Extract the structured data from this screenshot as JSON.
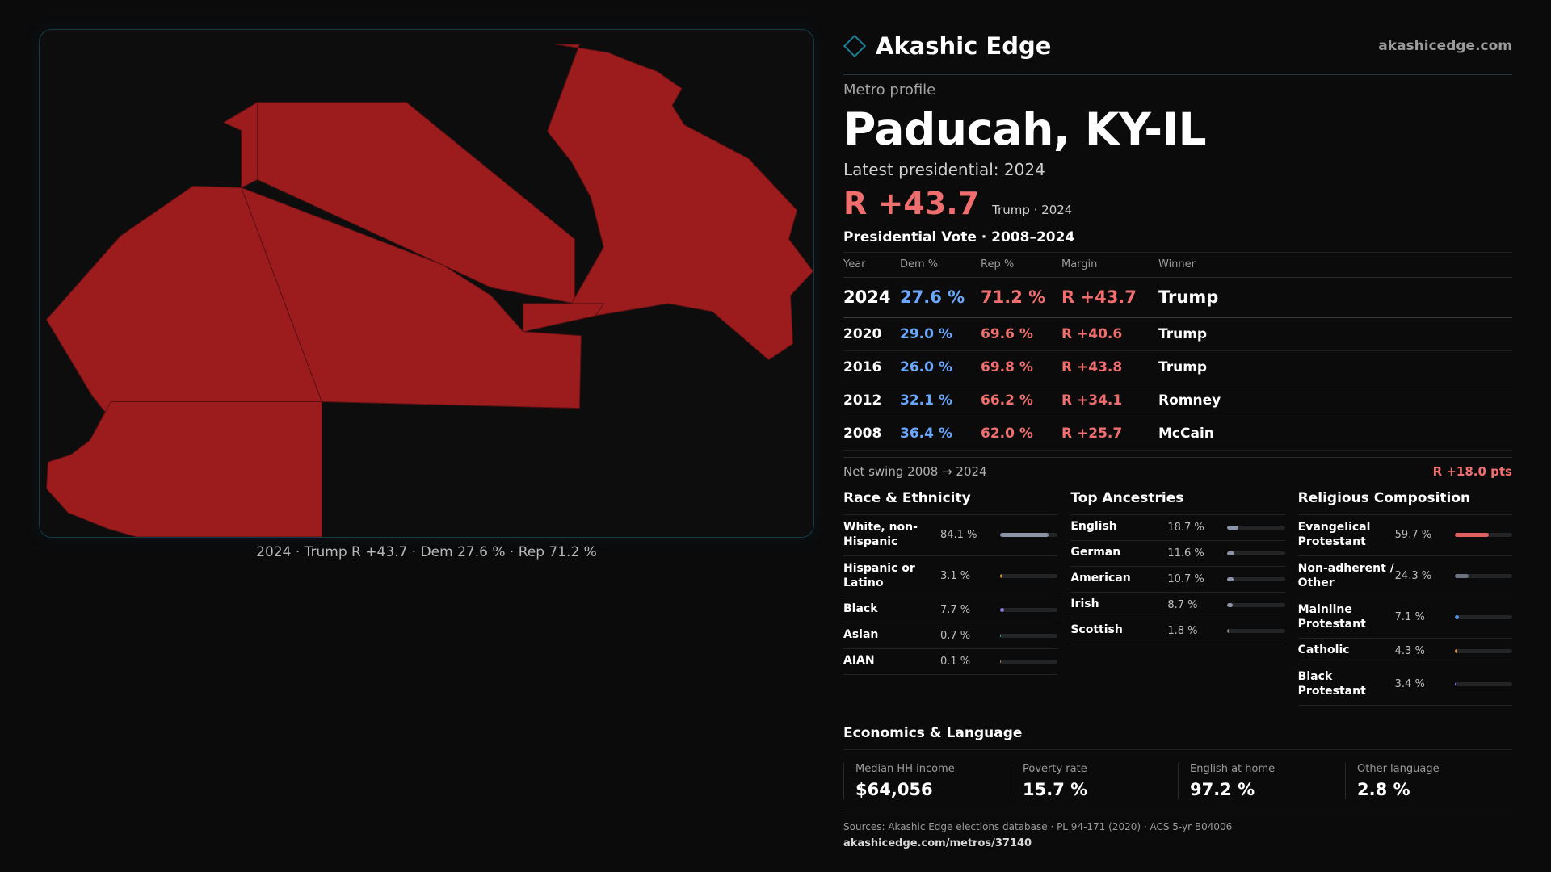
{
  "brand": {
    "name": "Akashic Edge",
    "url": "akashicedge.com",
    "icon": "diamond-logo-icon",
    "accent": "#1b7f95"
  },
  "map": {
    "caption": "2024 · Trump R +43.7 · Dem 27.6 % · Rep 71.2 %",
    "fill_color": "#9c1c1e",
    "stroke_color": "#5a1012"
  },
  "profile": {
    "kicker": "Metro profile",
    "title": "Paducah, KY-IL",
    "latest_label": "Latest presidential: 2024",
    "latest_margin": "R +43.7",
    "latest_sub": "Trump · 2024"
  },
  "vote": {
    "title": "Presidential Vote · 2008–2024",
    "headers": [
      "Year",
      "Dem %",
      "Rep %",
      "Margin",
      "Winner"
    ],
    "rows": [
      {
        "year": "2024",
        "dem": "27.6 %",
        "rep": "71.2 %",
        "margin": "R +43.7",
        "winner": "Trump"
      },
      {
        "year": "2020",
        "dem": "29.0 %",
        "rep": "69.6 %",
        "margin": "R +40.6",
        "winner": "Trump"
      },
      {
        "year": "2016",
        "dem": "26.0 %",
        "rep": "69.8 %",
        "margin": "R +43.8",
        "winner": "Trump"
      },
      {
        "year": "2012",
        "dem": "32.1 %",
        "rep": "66.2 %",
        "margin": "R +34.1",
        "winner": "Romney"
      },
      {
        "year": "2008",
        "dem": "36.4 %",
        "rep": "62.0 %",
        "margin": "R +25.7",
        "winner": "McCain"
      }
    ],
    "swing_label": "Net swing 2008 → 2024",
    "swing_value": "R +18.0 pts",
    "colors": {
      "dem": "#6aa8ff",
      "rep": "#f06e6e"
    }
  },
  "race": {
    "title": "Race & Ethnicity",
    "items": [
      {
        "label": "White, non-Hispanic",
        "value": "84.1 %",
        "pct": 84.1,
        "color": "#8a94a6"
      },
      {
        "label": "Hispanic or Latino",
        "value": "3.1 %",
        "pct": 3.1,
        "color": "#e0a030"
      },
      {
        "label": "Black",
        "value": "7.7 %",
        "pct": 7.7,
        "color": "#8f7ae0"
      },
      {
        "label": "Asian",
        "value": "0.7 %",
        "pct": 0.7,
        "color": "#3fc0a0"
      },
      {
        "label": "AIAN",
        "value": "0.1 %",
        "pct": 0.1,
        "color": "#c08050"
      }
    ]
  },
  "ancestry": {
    "title": "Top Ancestries",
    "items": [
      {
        "label": "English",
        "value": "18.7 %",
        "pct": 18.7,
        "color": "#8a94a6"
      },
      {
        "label": "German",
        "value": "11.6 %",
        "pct": 11.6,
        "color": "#8a94a6"
      },
      {
        "label": "American",
        "value": "10.7 %",
        "pct": 10.7,
        "color": "#8a94a6"
      },
      {
        "label": "Irish",
        "value": "8.7 %",
        "pct": 8.7,
        "color": "#8a94a6"
      },
      {
        "label": "Scottish",
        "value": "1.8 %",
        "pct": 1.8,
        "color": "#8a94a6"
      }
    ]
  },
  "religion": {
    "title": "Religious Composition",
    "items": [
      {
        "label": "Evangelical Protestant",
        "value": "59.7 %",
        "pct": 59.7,
        "color": "#e06060"
      },
      {
        "label": "Non-adherent / Other",
        "value": "24.3 %",
        "pct": 24.3,
        "color": "#6b7280"
      },
      {
        "label": "Mainline Protestant",
        "value": "7.1 %",
        "pct": 7.1,
        "color": "#5b8fe0"
      },
      {
        "label": "Catholic",
        "value": "4.3 %",
        "pct": 4.3,
        "color": "#e0a030"
      },
      {
        "label": "Black Protestant",
        "value": "3.4 %",
        "pct": 3.4,
        "color": "#8f7ae0"
      }
    ]
  },
  "econ": {
    "title": "Economics & Language",
    "cells": [
      {
        "label": "Median HH income",
        "value": "$64,056"
      },
      {
        "label": "Poverty rate",
        "value": "15.7 %"
      },
      {
        "label": "English at home",
        "value": "97.2 %"
      },
      {
        "label": "Other language",
        "value": "2.8 %"
      }
    ]
  },
  "sources": {
    "text": "Sources: Akashic Edge elections database · PL 94-171 (2020) · ACS 5-yr B04006",
    "url": "akashicedge.com/metros/37140"
  }
}
